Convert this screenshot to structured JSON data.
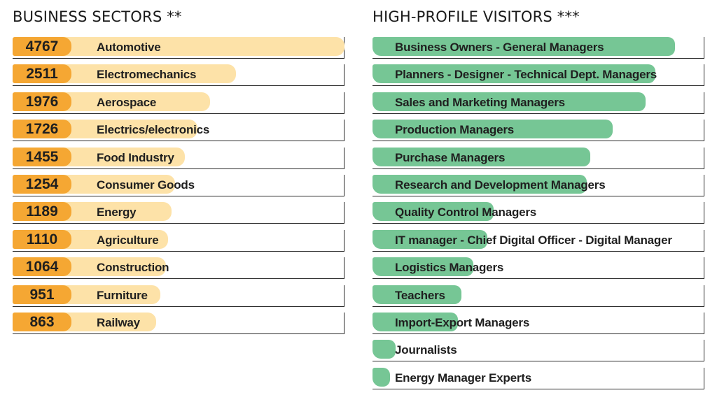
{
  "chart_data": [
    {
      "type": "bar",
      "title": "BUSINESS SECTORS **",
      "categories": [
        "Automotive",
        "Electromechanics",
        "Aerospace",
        "Electrics/electronics",
        "Food Industry",
        "Consumer Goods",
        "Energy",
        "Agriculture",
        "Construction",
        "Furniture",
        "Railway"
      ],
      "values": [
        4767,
        2511,
        1976,
        1726,
        1455,
        1254,
        1189,
        1110,
        1064,
        951,
        863
      ],
      "colors": {
        "value_badge": "#f5a733",
        "bar": "#fde2a8"
      }
    },
    {
      "type": "bar",
      "title": "HIGH-PROFILE VISITORS ***",
      "categories": [
        "Business Owners - General Managers",
        "Planners - Designer - Technical Dept. Managers",
        "Sales and Marketing Managers",
        "Production Managers",
        "Purchase Managers",
        "Research and Development Managers",
        "Quality Control Managers",
        "IT manager - Chief Digital Officer - Digital Manager",
        "Logistics Managers",
        "Teachers",
        "Import-Export Managers",
        "Journalists",
        "Energy Manager Experts"
      ],
      "values": [
        0.912,
        0.853,
        0.823,
        0.724,
        0.657,
        0.645,
        0.365,
        0.347,
        0.304,
        0.267,
        0.257,
        0.069,
        0.053
      ],
      "colors": {
        "bar": "#76c695"
      }
    }
  ]
}
